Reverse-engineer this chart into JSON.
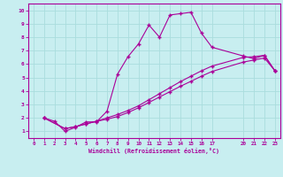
{
  "xlabel": "Windchill (Refroidissement éolien,°C)",
  "bg_color": "#c8eef0",
  "line_color": "#aa0099",
  "grid_color": "#aadddd",
  "xlim": [
    -0.5,
    23.5
  ],
  "ylim": [
    0.5,
    10.5
  ],
  "xticks": [
    0,
    1,
    2,
    3,
    4,
    5,
    6,
    7,
    8,
    9,
    10,
    11,
    12,
    13,
    14,
    15,
    16,
    17,
    20,
    21,
    22,
    23
  ],
  "yticks": [
    1,
    2,
    3,
    4,
    5,
    6,
    7,
    8,
    9,
    10
  ],
  "line1_x": [
    1,
    2,
    3,
    4,
    5,
    6,
    7,
    8,
    9,
    10,
    11,
    12,
    13,
    14,
    15,
    16,
    17,
    20,
    21,
    22,
    23
  ],
  "line1_y": [
    2.0,
    1.75,
    1.0,
    1.3,
    1.7,
    1.7,
    2.5,
    5.25,
    6.55,
    7.5,
    8.9,
    8.0,
    9.65,
    9.75,
    9.85,
    8.3,
    7.25,
    6.6,
    6.4,
    6.65,
    5.5
  ],
  "line2_x": [
    1,
    3,
    4,
    5,
    6,
    7,
    8,
    9,
    10,
    11,
    12,
    13,
    14,
    15,
    16,
    17,
    20,
    21,
    22,
    23
  ],
  "line2_y": [
    2.0,
    1.2,
    1.35,
    1.55,
    1.75,
    2.0,
    2.25,
    2.55,
    2.9,
    3.35,
    3.8,
    4.25,
    4.7,
    5.1,
    5.5,
    5.85,
    6.5,
    6.55,
    6.65,
    5.5
  ],
  "line3_x": [
    1,
    3,
    4,
    5,
    6,
    7,
    8,
    9,
    10,
    11,
    12,
    13,
    14,
    15,
    16,
    17,
    20,
    21,
    22,
    23
  ],
  "line3_y": [
    2.0,
    1.2,
    1.35,
    1.55,
    1.75,
    1.9,
    2.1,
    2.4,
    2.75,
    3.15,
    3.55,
    3.95,
    4.35,
    4.72,
    5.1,
    5.45,
    6.15,
    6.3,
    6.45,
    5.5
  ]
}
